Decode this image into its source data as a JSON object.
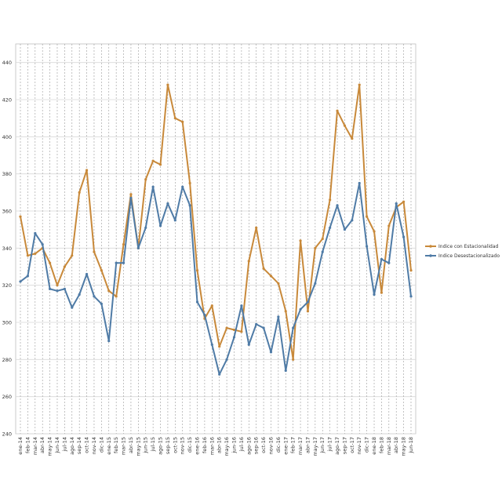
{
  "chart_data": {
    "type": "line",
    "title": "",
    "xlabel": "",
    "ylabel": "",
    "ylim": [
      240,
      450
    ],
    "yticks": [
      240,
      260,
      280,
      300,
      320,
      340,
      360,
      380,
      400,
      420,
      440
    ],
    "grid": true,
    "legend_position": "right",
    "categories": [
      "ene-14",
      "feb-14",
      "mar-14",
      "abr-14",
      "may-14",
      "jun-14",
      "jul-14",
      "ago-14",
      "sep-14",
      "oct-14",
      "nov-14",
      "dic-14",
      "ene-15",
      "feb-15",
      "mar-15",
      "abr-15",
      "may-15",
      "jun-15",
      "jul-15",
      "ago-15",
      "sep-15",
      "oct-15",
      "nov-15",
      "dic-15",
      "ene-16",
      "feb-16",
      "mar-16",
      "abr-16",
      "may-16",
      "jun-16",
      "jul-16",
      "ago-16",
      "sep-16",
      "oct-16",
      "nov-16",
      "dic-16",
      "ene-17",
      "feb-17",
      "mar-17",
      "abr-17",
      "may-17",
      "jun-17",
      "jul-17",
      "ago-17",
      "sep-17",
      "oct-17",
      "nov-17",
      "dic-17",
      "ene-18",
      "feb-18",
      "mar-18",
      "abr-18",
      "may-18",
      "jun-18"
    ],
    "series": [
      {
        "name": "Indice con Estacionalidad",
        "color": "#C8893A",
        "values": [
          357,
          336,
          337,
          340,
          332,
          320,
          330,
          336,
          370,
          382,
          338,
          328,
          317,
          314,
          342,
          369,
          340,
          377,
          387,
          385,
          428,
          410,
          408,
          375,
          328,
          302,
          309,
          287,
          297,
          296,
          295,
          333,
          351,
          329,
          325,
          321,
          306,
          280,
          344,
          306,
          340,
          345,
          366,
          414,
          406,
          399,
          428,
          357,
          349,
          316,
          352,
          362,
          365,
          328
        ]
      },
      {
        "name": "Indice Desestacionalizado",
        "color": "#4F7BA6",
        "values": [
          322,
          325,
          348,
          342,
          318,
          317,
          318,
          308,
          315,
          326,
          314,
          310,
          290,
          332,
          332,
          367,
          340,
          351,
          373,
          352,
          364,
          355,
          373,
          363,
          311,
          304,
          288,
          272,
          280,
          292,
          309,
          288,
          299,
          297,
          284,
          303,
          274,
          297,
          307,
          311,
          321,
          338,
          351,
          363,
          350,
          355,
          375,
          341,
          315,
          334,
          332,
          364,
          346,
          314
        ]
      }
    ]
  }
}
